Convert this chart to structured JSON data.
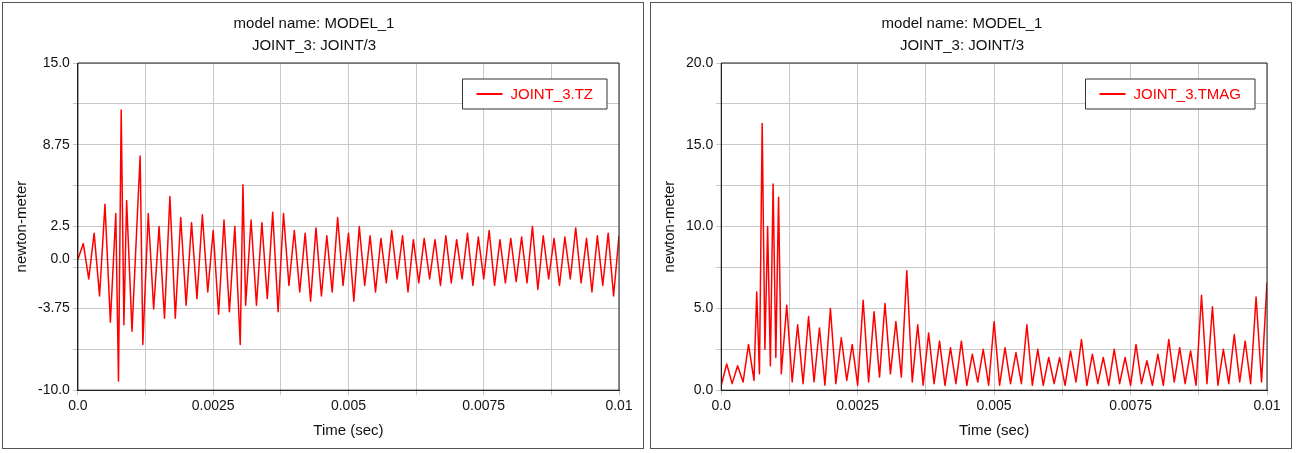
{
  "chart_data": [
    {
      "type": "line",
      "title": "model name: MODEL_1",
      "subtitle": "JOINT_3: JOINT/3",
      "xlabel": "Time (sec)",
      "ylabel": "newton-meter",
      "x": [
        0,
        0.0001,
        0.0002,
        0.0003,
        0.0004,
        0.0005,
        0.0006,
        0.0007,
        0.00075,
        0.0008,
        0.00085,
        0.0009,
        0.001,
        0.0011,
        0.00115,
        0.0012,
        0.0013,
        0.0014,
        0.0015,
        0.0016,
        0.0017,
        0.0018,
        0.0019,
        0.002,
        0.0021,
        0.0022,
        0.0023,
        0.0024,
        0.0025,
        0.0026,
        0.0027,
        0.0028,
        0.0029,
        0.003,
        0.00305,
        0.0031,
        0.0032,
        0.0033,
        0.0034,
        0.0035,
        0.0036,
        0.0037,
        0.0038,
        0.0039,
        0.004,
        0.0041,
        0.0042,
        0.0043,
        0.0044,
        0.0045,
        0.0046,
        0.0047,
        0.0048,
        0.0049,
        0.005,
        0.0051,
        0.0052,
        0.0053,
        0.0054,
        0.0055,
        0.0056,
        0.0057,
        0.0058,
        0.0059,
        0.006,
        0.0061,
        0.0062,
        0.0063,
        0.0064,
        0.0065,
        0.0066,
        0.0067,
        0.0068,
        0.0069,
        0.007,
        0.0071,
        0.0072,
        0.0073,
        0.0074,
        0.0075,
        0.0076,
        0.0077,
        0.0078,
        0.0079,
        0.008,
        0.0081,
        0.0082,
        0.0083,
        0.0084,
        0.0085,
        0.0086,
        0.0087,
        0.0088,
        0.0089,
        0.009,
        0.0091,
        0.0092,
        0.0093,
        0.0094,
        0.0095,
        0.0096,
        0.0097,
        0.0098,
        0.0099,
        0.01
      ],
      "series": [
        {
          "name": "JOINT_3.TZ",
          "color": "#ff0000",
          "values": [
            0,
            1.2,
            -1.5,
            2.0,
            -2.8,
            4.2,
            -4.8,
            3.5,
            -9.3,
            11.4,
            -5.0,
            4.5,
            -5.5,
            3.5,
            7.9,
            -6.5,
            3.5,
            -3.8,
            2.5,
            -4.5,
            4.8,
            -4.5,
            3.2,
            -3.5,
            2.8,
            -3.0,
            3.4,
            -2.5,
            2.2,
            -4.2,
            3.0,
            -4.0,
            2.5,
            -6.5,
            5.7,
            -3.5,
            3.0,
            -3.5,
            2.8,
            -3.0,
            3.6,
            -4.0,
            3.5,
            -2.0,
            2.2,
            -2.5,
            2.0,
            -3.2,
            2.4,
            -2.8,
            1.8,
            -2.5,
            3.2,
            -2.0,
            2.0,
            -3.2,
            2.5,
            -2.0,
            1.8,
            -2.5,
            1.6,
            -1.8,
            2.2,
            -1.5,
            1.8,
            -2.5,
            1.5,
            -1.8,
            1.6,
            -1.5,
            1.5,
            -2.0,
            1.8,
            -1.8,
            1.5,
            -1.5,
            2.0,
            -2.0,
            1.7,
            -1.5,
            2.2,
            -2.0,
            1.5,
            -1.8,
            1.6,
            -1.7,
            1.7,
            -1.8,
            2.5,
            -2.3,
            1.8,
            -1.5,
            1.6,
            -2.0,
            1.7,
            -1.5,
            2.4,
            -1.8,
            1.6,
            -2.5,
            1.8,
            -2.0,
            2.0,
            -2.8,
            1.8
          ]
        }
      ],
      "xlim": [
        0,
        0.01
      ],
      "xticks": [
        {
          "value": 0,
          "label": "0.0"
        },
        {
          "value": 0.00125,
          "label": null
        },
        0.0025,
        {
          "value": 0.00375,
          "label": null
        },
        0.005,
        {
          "value": 0.00625,
          "label": null
        },
        0.0075,
        {
          "value": 0.00875,
          "label": null
        },
        0.01
      ],
      "ylim": [
        -10,
        15
      ],
      "yticks": [
        {
          "value": -10,
          "label": "-10.0"
        },
        {
          "value": -6.875,
          "label": null
        },
        -3.75,
        {
          "value": -0.625,
          "label": null
        },
        {
          "value": 0,
          "label": "0.0"
        },
        2.5,
        {
          "value": 5.625,
          "label": null
        },
        8.75,
        {
          "value": 11.875,
          "label": null
        },
        {
          "value": 15,
          "label": "15.0"
        }
      ],
      "grid": true,
      "legend": "top right"
    },
    {
      "type": "line",
      "title": "model name: MODEL_1",
      "subtitle": "JOINT_3: JOINT/3",
      "xlabel": "Time (sec)",
      "ylabel": "newton-meter",
      "x": [
        0,
        0.0001,
        0.0002,
        0.0003,
        0.0004,
        0.0005,
        0.0006,
        0.00065,
        0.0007,
        0.00075,
        0.0008,
        0.00085,
        0.0009,
        0.00095,
        0.001,
        0.00105,
        0.0011,
        0.0012,
        0.0013,
        0.0014,
        0.0015,
        0.0016,
        0.0017,
        0.0018,
        0.0019,
        0.002,
        0.0021,
        0.0022,
        0.0023,
        0.0024,
        0.0025,
        0.0026,
        0.0027,
        0.0028,
        0.0029,
        0.003,
        0.0031,
        0.0032,
        0.0033,
        0.0034,
        0.0035,
        0.0036,
        0.0037,
        0.0038,
        0.0039,
        0.004,
        0.0041,
        0.0042,
        0.0043,
        0.0044,
        0.0045,
        0.0046,
        0.0047,
        0.0048,
        0.0049,
        0.005,
        0.0051,
        0.0052,
        0.0053,
        0.0054,
        0.0055,
        0.0056,
        0.0057,
        0.0058,
        0.0059,
        0.006,
        0.0061,
        0.0062,
        0.0063,
        0.0064,
        0.0065,
        0.0066,
        0.0067,
        0.0068,
        0.0069,
        0.007,
        0.0071,
        0.0072,
        0.0073,
        0.0074,
        0.0075,
        0.0076,
        0.0077,
        0.0078,
        0.0079,
        0.008,
        0.0081,
        0.0082,
        0.0083,
        0.0084,
        0.0085,
        0.0086,
        0.0087,
        0.0088,
        0.0089,
        0.009,
        0.0091,
        0.0092,
        0.0093,
        0.0094,
        0.0095,
        0.0096,
        0.0097,
        0.0098,
        0.0099,
        0.01
      ],
      "series": [
        {
          "name": "JOINT_3.TMAG",
          "color": "#ff0000",
          "values": [
            0.3,
            1.6,
            0.4,
            1.5,
            0.5,
            2.8,
            0.6,
            6.0,
            1.0,
            16.3,
            2.5,
            10.0,
            1.5,
            12.6,
            2.0,
            11.8,
            1.0,
            5.2,
            0.5,
            4.0,
            0.4,
            4.5,
            0.5,
            3.8,
            0.3,
            5.0,
            0.4,
            3.2,
            0.6,
            2.8,
            0.3,
            5.5,
            0.5,
            4.8,
            0.8,
            5.3,
            1.0,
            4.2,
            0.8,
            7.3,
            0.5,
            4.0,
            0.3,
            3.5,
            0.4,
            3.0,
            0.3,
            2.6,
            0.4,
            3.0,
            0.3,
            2.2,
            0.5,
            2.5,
            0.3,
            4.2,
            0.3,
            2.6,
            0.4,
            2.3,
            0.4,
            4.0,
            0.3,
            2.5,
            0.3,
            2.0,
            0.4,
            2.0,
            0.3,
            2.4,
            0.5,
            3.1,
            0.3,
            2.2,
            0.4,
            2.0,
            0.3,
            2.5,
            0.4,
            2.0,
            0.3,
            2.8,
            0.4,
            1.8,
            0.3,
            2.2,
            0.3,
            3.1,
            0.5,
            2.6,
            0.4,
            2.4,
            0.3,
            5.8,
            0.4,
            5.1,
            0.3,
            2.5,
            0.4,
            3.4,
            0.5,
            3.0,
            0.4,
            5.7,
            0.5,
            6.6
          ]
        }
      ],
      "xlim": [
        0,
        0.01
      ],
      "xticks": [
        {
          "value": 0,
          "label": "0.0"
        },
        {
          "value": 0.00125,
          "label": null
        },
        0.0025,
        {
          "value": 0.00375,
          "label": null
        },
        0.005,
        {
          "value": 0.00625,
          "label": null
        },
        0.0075,
        {
          "value": 0.00875,
          "label": null
        },
        0.01
      ],
      "ylim": [
        0,
        20
      ],
      "yticks": [
        {
          "value": 0,
          "label": "0.0"
        },
        {
          "value": 2.5,
          "label": null
        },
        {
          "value": 5,
          "label": "5.0"
        },
        {
          "value": 7.5,
          "label": null
        },
        {
          "value": 10,
          "label": "10.0"
        },
        {
          "value": 12.5,
          "label": null
        },
        {
          "value": 15,
          "label": "15.0"
        },
        {
          "value": 17.5,
          "label": null
        },
        {
          "value": 20,
          "label": "20.0"
        }
      ],
      "grid": true,
      "legend": "top right"
    }
  ]
}
